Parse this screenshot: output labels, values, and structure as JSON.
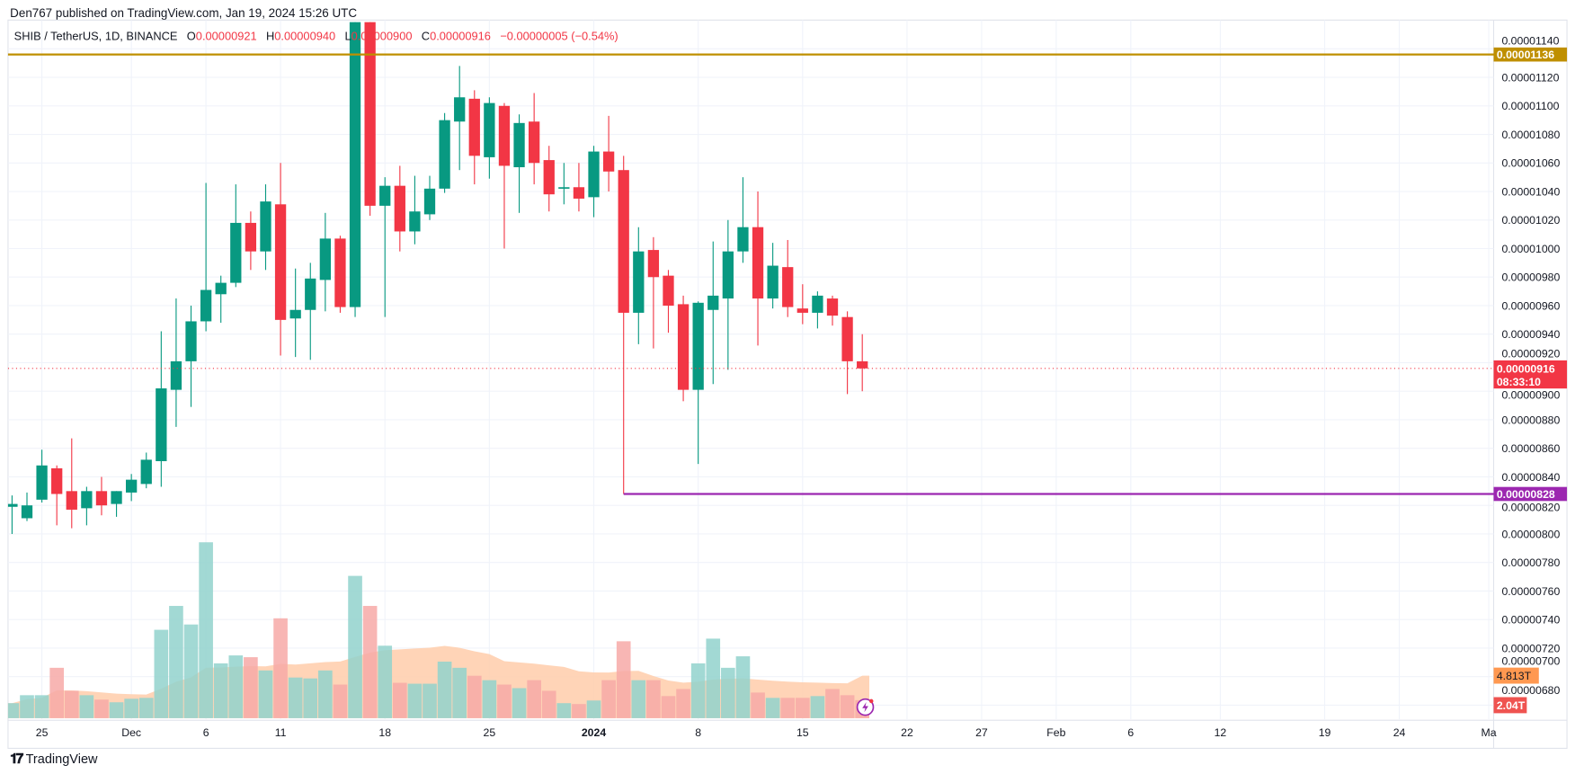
{
  "header": {
    "published": "Den767 published on TradingView.com, Jan 19, 2024 15:26 UTC"
  },
  "legend": {
    "symbol": "SHIB / TetherUS, 1D, BINANCE",
    "o_label": "O",
    "o": "0.00000921",
    "h_label": "H",
    "h": "0.00000940",
    "l_label": "L",
    "l": "0.00000900",
    "c_label": "C",
    "c": "0.00000916",
    "change": "−0.00000005 (−0.54%)"
  },
  "footer": {
    "brand": "TradingView",
    "logo": "17"
  },
  "colors": {
    "up": "#089981",
    "down": "#f23645",
    "vol_up": "#92d2cc",
    "vol_down": "#f7a9a7",
    "ma_fill": "#ffccaa",
    "ma_bar": "#f8a07c",
    "resistance": "#bf8f00",
    "support": "#9c27b0",
    "grid": "#f0f3fa"
  },
  "chart_data": {
    "type": "candlestick",
    "title": "SHIB / TetherUS, 1D, BINANCE",
    "price_unit": "1e-8 USDT",
    "ylim": [
      675,
      1150
    ],
    "y_ticks": [
      "0.00000680",
      "0.00000700",
      "0.00000720",
      "0.00000740",
      "0.00000760",
      "0.00000780",
      "0.00000800",
      "0.00000820",
      "0.00000840",
      "0.00000860",
      "0.00000880",
      "0.00000900",
      "0.00000920",
      "0.00000940",
      "0.00000960",
      "0.00000980",
      "0.00001000",
      "0.00001020",
      "0.00001040",
      "0.00001060",
      "0.00001080",
      "0.00001100",
      "0.00001120",
      "0.00001140"
    ],
    "x_ticks": [
      {
        "label": "25",
        "date": "2023-11-25"
      },
      {
        "label": "Dec",
        "date": "2023-12-01"
      },
      {
        "label": "6",
        "date": "2023-12-06"
      },
      {
        "label": "11",
        "date": "2023-12-11"
      },
      {
        "label": "18",
        "date": "2023-12-18"
      },
      {
        "label": "25",
        "date": "2023-12-25"
      },
      {
        "label": "2024",
        "date": "2024-01-01"
      },
      {
        "label": "8",
        "date": "2024-01-08"
      },
      {
        "label": "15",
        "date": "2024-01-15"
      },
      {
        "label": "22",
        "date": "2024-01-22"
      },
      {
        "label": "27",
        "date": "2024-01-27"
      },
      {
        "label": "Feb",
        "date": "2024-02-01"
      },
      {
        "label": "6",
        "date": "2024-02-06"
      },
      {
        "label": "12",
        "date": "2024-02-12"
      },
      {
        "label": "19",
        "date": "2024-02-19"
      },
      {
        "label": "24",
        "date": "2024-02-24"
      },
      {
        "label": "Ma",
        "date": "2024-03-01"
      }
    ],
    "start_date": "2023-11-23",
    "ohlc": [
      [
        819,
        827,
        800,
        821
      ],
      [
        811,
        829,
        809,
        820
      ],
      [
        824,
        859,
        822,
        848
      ],
      [
        846,
        848,
        806,
        828
      ],
      [
        830,
        867,
        804,
        817
      ],
      [
        818,
        833,
        806,
        830
      ],
      [
        830,
        840,
        813,
        820
      ],
      [
        821,
        830,
        812,
        830
      ],
      [
        829,
        842,
        823,
        838
      ],
      [
        835,
        857,
        832,
        852
      ],
      [
        851,
        942,
        833,
        902
      ],
      [
        901,
        965,
        875,
        921
      ],
      [
        921,
        960,
        889,
        949
      ],
      [
        949,
        1046,
        942,
        971
      ],
      [
        968,
        981,
        948,
        976
      ],
      [
        976,
        1045,
        973,
        1018
      ],
      [
        1018,
        1026,
        985,
        998
      ],
      [
        998,
        1045,
        985,
        1033
      ],
      [
        1031,
        1060,
        925,
        950
      ],
      [
        951,
        986,
        924,
        957
      ],
      [
        957,
        990,
        922,
        979
      ],
      [
        978,
        1025,
        956,
        1007
      ],
      [
        1007,
        1009,
        955,
        959
      ],
      [
        959,
        1160,
        952,
        1160
      ],
      [
        1160,
        1160,
        1023,
        1030
      ],
      [
        1030,
        1050,
        952,
        1044
      ],
      [
        1044,
        1058,
        998,
        1012
      ],
      [
        1012,
        1051,
        1003,
        1026
      ],
      [
        1024,
        1051,
        1020,
        1042
      ],
      [
        1042,
        1095,
        1039,
        1090
      ],
      [
        1089,
        1128,
        1055,
        1106
      ],
      [
        1105,
        1111,
        1045,
        1065
      ],
      [
        1064,
        1106,
        1049,
        1102
      ],
      [
        1100,
        1102,
        1000,
        1058
      ],
      [
        1057,
        1094,
        1025,
        1088
      ],
      [
        1089,
        1109,
        1045,
        1060
      ],
      [
        1062,
        1072,
        1026,
        1038
      ],
      [
        1042,
        1060,
        1031,
        1043
      ],
      [
        1043,
        1060,
        1026,
        1035
      ],
      [
        1036,
        1072,
        1022,
        1068
      ],
      [
        1068,
        1093,
        1040,
        1054
      ],
      [
        1055,
        1065,
        828,
        955
      ],
      [
        955,
        1015,
        933,
        998
      ],
      [
        999,
        1008,
        930,
        980
      ],
      [
        981,
        985,
        941,
        960
      ],
      [
        961,
        967,
        893,
        901
      ],
      [
        901,
        963,
        849,
        962
      ],
      [
        957,
        1005,
        905,
        967
      ],
      [
        965,
        1020,
        915,
        998
      ],
      [
        998,
        1050,
        990,
        1015
      ],
      [
        1015,
        1040,
        932,
        965
      ],
      [
        965,
        1004,
        958,
        988
      ],
      [
        987,
        1006,
        952,
        959
      ],
      [
        958,
        975,
        947,
        955
      ],
      [
        955,
        970,
        944,
        967
      ],
      [
        965,
        967,
        946,
        953
      ],
      [
        952,
        956,
        898,
        921
      ],
      [
        921,
        940,
        900,
        916
      ]
    ],
    "volume_T": [
      1.7,
      2.6,
      2.6,
      5.7,
      3.1,
      2.6,
      2.1,
      1.8,
      2.2,
      2.3,
      10,
      12.7,
      10.6,
      19.9,
      6.2,
      7.1,
      6.9,
      5.4,
      11.3,
      4.6,
      4.5,
      5.4,
      3.8,
      16.1,
      12.7,
      8.2,
      4.0,
      3.9,
      3.9,
      6.4,
      5.7,
      4.8,
      4.3,
      3.8,
      3.4,
      4.3,
      3.1,
      1.7,
      1.6,
      2.0,
      4.3,
      8.7,
      4.3,
      4.3,
      2.5,
      3.3,
      6.2,
      9.0,
      5.7,
      7.0,
      2.9,
      2.3,
      2.3,
      2.3,
      2.5,
      3.3,
      2.6,
      2.04
    ],
    "volume_ma_label": "4.813T",
    "volume_ma_value": 4.813,
    "volume_last_label": "2.04T",
    "levels": [
      {
        "price": 1136,
        "label": "0.00001136",
        "color": "#bf8f00"
      },
      {
        "price": 828,
        "label": "0.00000828",
        "color": "#9c27b0",
        "from_date": "2024-01-03"
      }
    ],
    "last_price": {
      "price": 916,
      "label": "0.00000916",
      "countdown": "08:33:10"
    }
  }
}
